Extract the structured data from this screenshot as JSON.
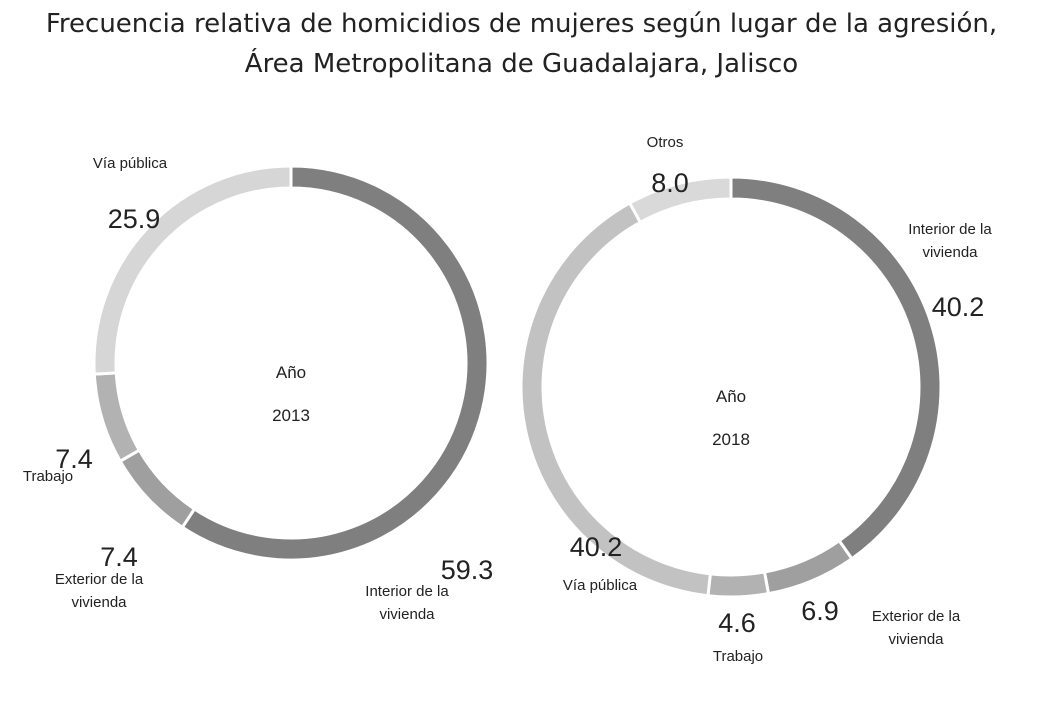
{
  "title_line1": "Frecuencia relativa de homicidios de mujeres según lugar de la agresión,",
  "title_line2": "Área Metropolitana de Guadalajara, Jalisco",
  "colors": {
    "Interior de la vivienda": "#7f7f7f",
    "Exterior de la vivienda": "#9f9f9f",
    "Trabajo": "#b2b2b2",
    "Vía pública": "#d6d6d6",
    "Otros": "#d9d9d9"
  },
  "chart_data": [
    {
      "type": "pie",
      "year_label": "Año",
      "year": "2013",
      "categories": [
        "Interior de la vivienda",
        "Exterior de la vivienda",
        "Trabajo",
        "Vía pública"
      ],
      "label_lines": [
        [
          "Interior de la",
          "vivienda"
        ],
        [
          "Exterior de la",
          "vivienda"
        ],
        [
          "Trabajo"
        ],
        [
          "Vía pública"
        ]
      ],
      "values": [
        59.3,
        7.4,
        7.4,
        25.9
      ],
      "value_labels": [
        "59.3",
        "7.4",
        "7.4",
        "25.9"
      ],
      "seg_colors": [
        "#7f7f7f",
        "#9f9f9f",
        "#b2b2b2",
        "#d6d6d6"
      ]
    },
    {
      "type": "pie",
      "year_label": "Año",
      "year": "2018",
      "categories": [
        "Interior de la vivienda",
        "Exterior de la vivienda",
        "Trabajo",
        "Vía pública",
        "Otros"
      ],
      "label_lines": [
        [
          "Interior de la",
          "vivienda"
        ],
        [
          "Exterior de la",
          "vivienda"
        ],
        [
          "Trabajo"
        ],
        [
          "Vía pública"
        ],
        [
          "Otros"
        ]
      ],
      "values": [
        40.2,
        6.9,
        4.6,
        40.2,
        8.0
      ],
      "value_labels": [
        "40.2",
        "6.9",
        "4.6",
        "40.2",
        "8.0"
      ],
      "seg_colors": [
        "#7f7f7f",
        "#9f9f9f",
        "#b2b2b2",
        "#c2c2c2",
        "#d9d9d9"
      ]
    }
  ]
}
